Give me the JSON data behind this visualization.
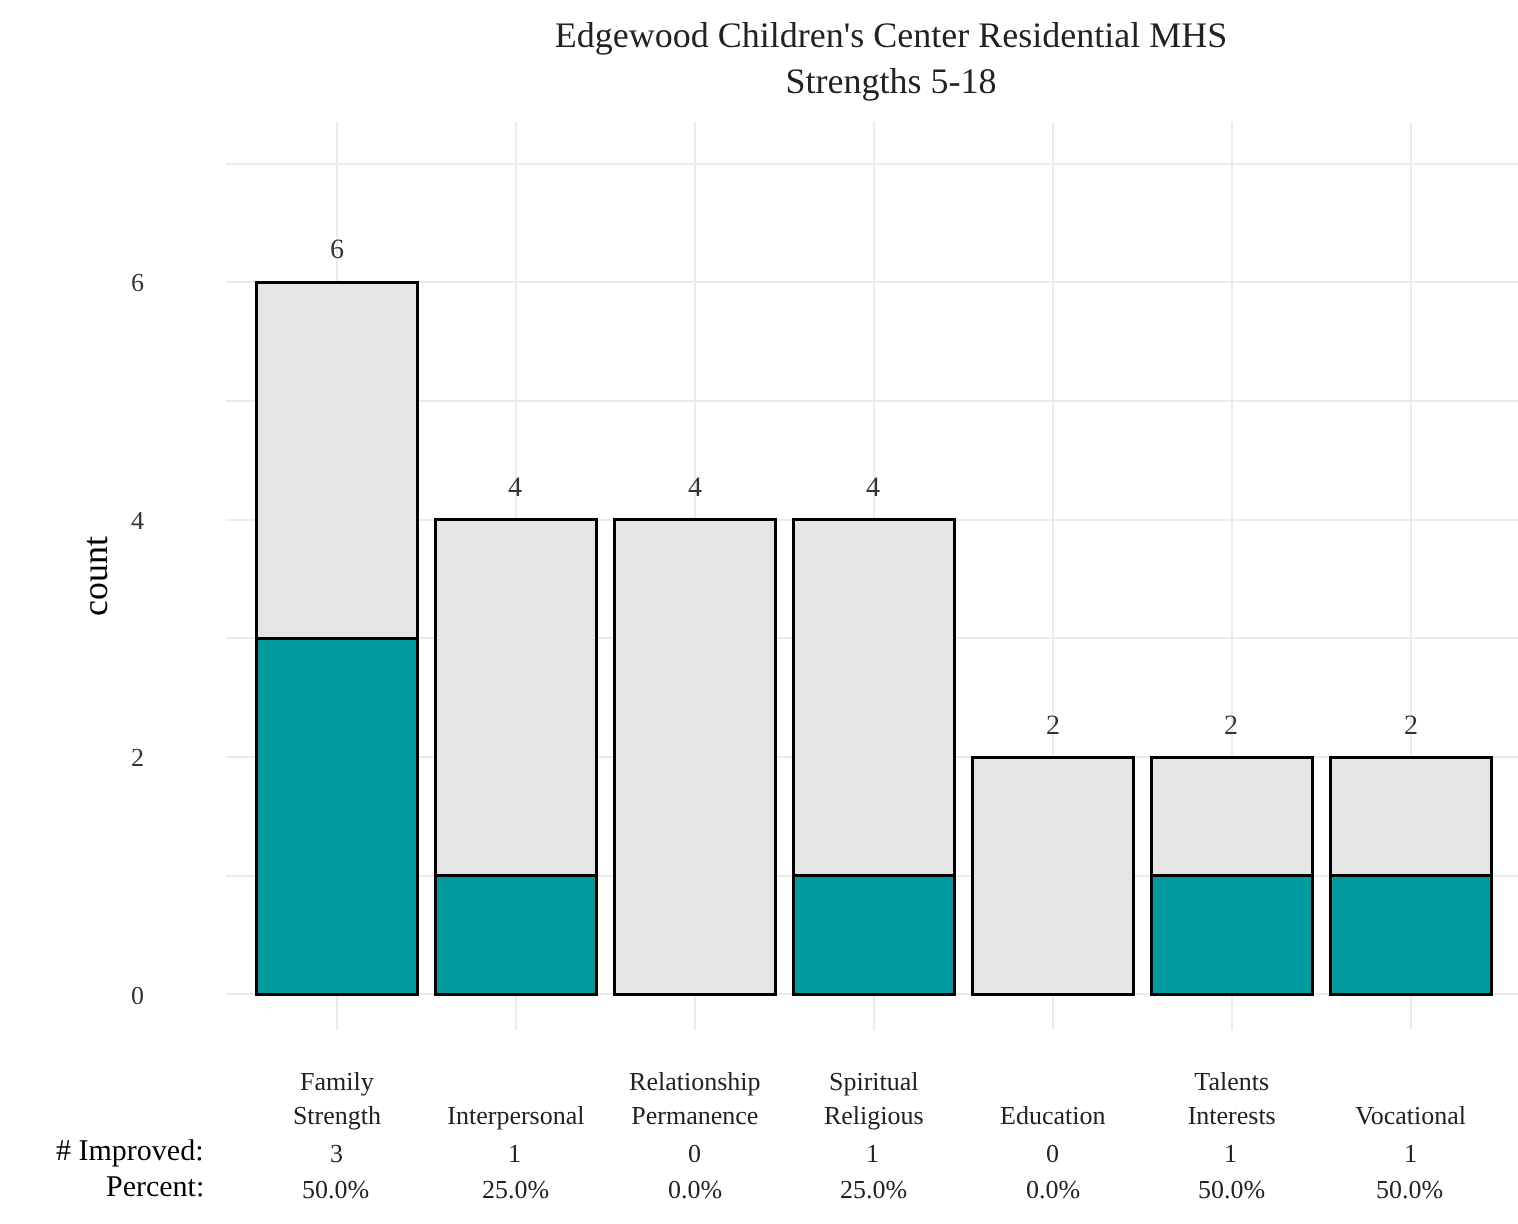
{
  "chart_data": {
    "type": "bar",
    "title": "Edgewood Children's Center Residential MHS\nStrengths 5-18",
    "ylabel": "count",
    "categories": [
      "Family\nStrength",
      "Interpersonal",
      "Relationship\nPermanence",
      "Spiritual\nReligious",
      "Education",
      "Talents\nInterests",
      "Vocational"
    ],
    "series": [
      {
        "color": "#009b9e",
        "values": [
          3,
          1,
          0,
          1,
          0,
          1,
          1
        ],
        "value_labels": [
          "3",
          "1",
          "0",
          "1",
          "0",
          "1",
          "1"
        ]
      },
      {
        "color": "#e5e5e5",
        "values": [
          3,
          3,
          4,
          3,
          2,
          1,
          1
        ]
      }
    ],
    "stacked": true,
    "totals": [
      "6",
      "4",
      "4",
      "4",
      "2",
      "2",
      "2"
    ],
    "ylim": [
      -0.3,
      7.35
    ],
    "yticks": [
      0,
      {
        "value": 1,
        "label": null
      },
      2,
      {
        "value": 3,
        "label": null
      },
      4,
      {
        "value": 5,
        "label": null
      },
      6,
      {
        "value": 7,
        "label": null
      }
    ],
    "grid": true,
    "annotations": [
      "# Improved:",
      "Percent:",
      "50.0%",
      "25.0%",
      "0.0%",
      "25.0%",
      "0.0%",
      "50.0%",
      "50.0%"
    ]
  }
}
